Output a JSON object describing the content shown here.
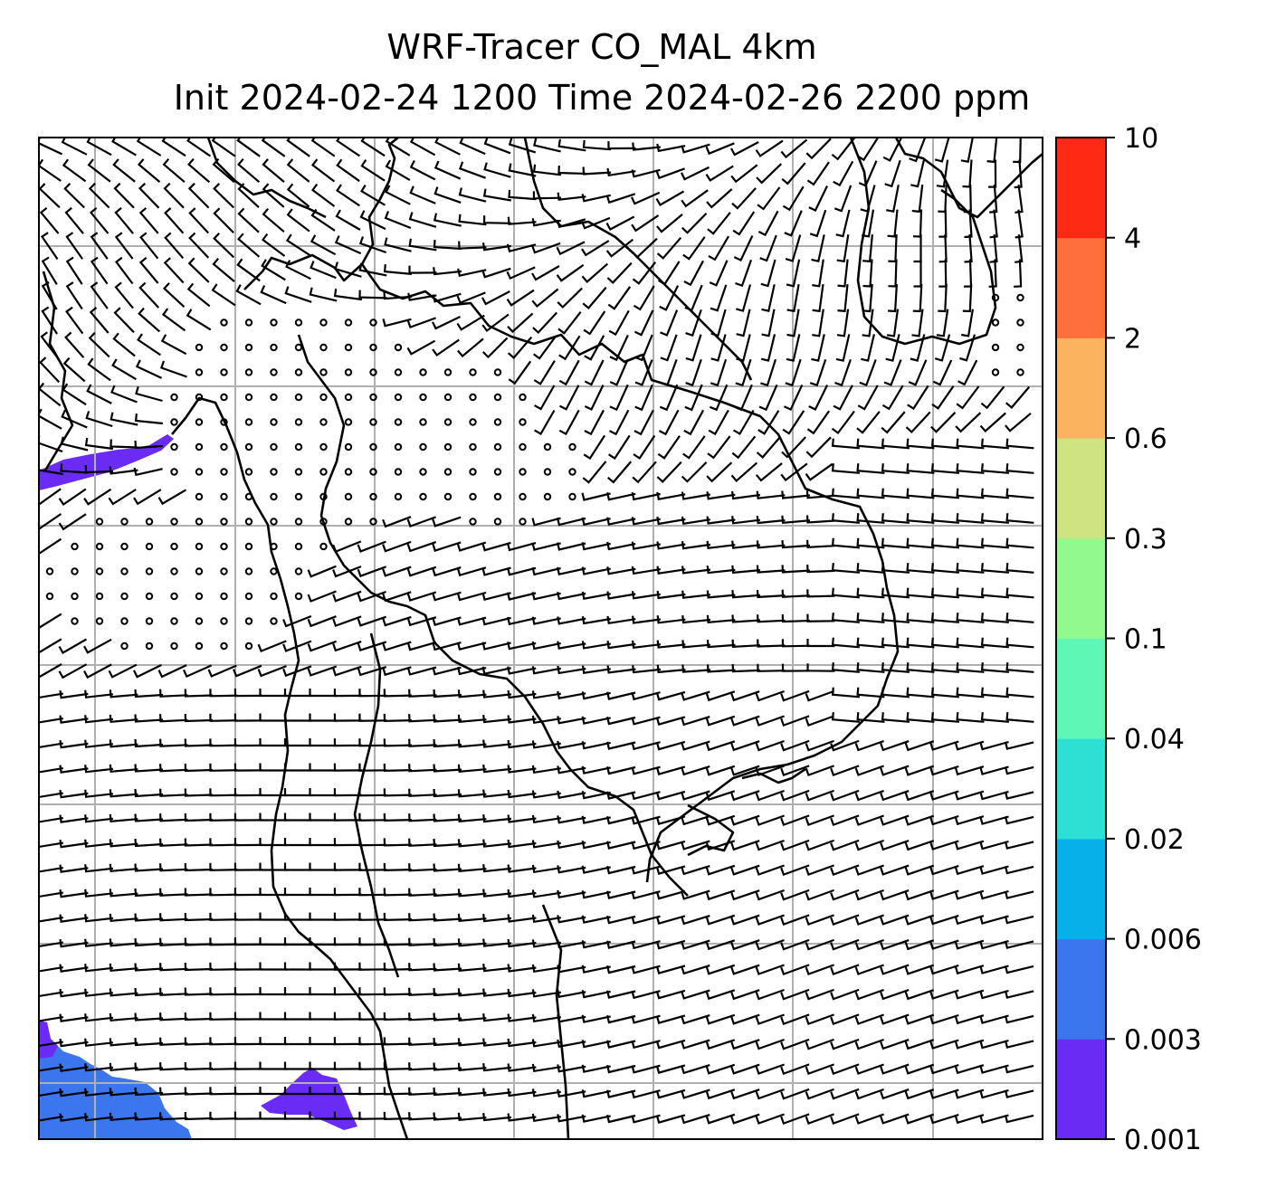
{
  "title": {
    "line1": "WRF-Tracer CO_MAL 4km",
    "line2": "Init 2024-02-24 1200 Time 2024-02-26 2200 ppm"
  },
  "colorbar": {
    "levels": [
      "0.001",
      "0.003",
      "0.006",
      "0.02",
      "0.04",
      "0.1",
      "0.3",
      "0.6",
      "2",
      "4",
      "10"
    ],
    "colors": [
      "#6a2cf5",
      "#3b76ee",
      "#08b0ea",
      "#2ee0d4",
      "#5ef7b6",
      "#92f98f",
      "#cfe383",
      "#fcb360",
      "#ff6f3c",
      "#ff2a14"
    ]
  },
  "map": {
    "grid": "on",
    "features": [
      "coastlines",
      "country borders",
      "wind barbs"
    ],
    "tracer_patches": [
      {
        "location": "north-west coast",
        "level": "0.001"
      },
      {
        "location": "south-west corner",
        "level": "0.003"
      },
      {
        "location": "south-west coast",
        "level": "0.001"
      }
    ]
  }
}
